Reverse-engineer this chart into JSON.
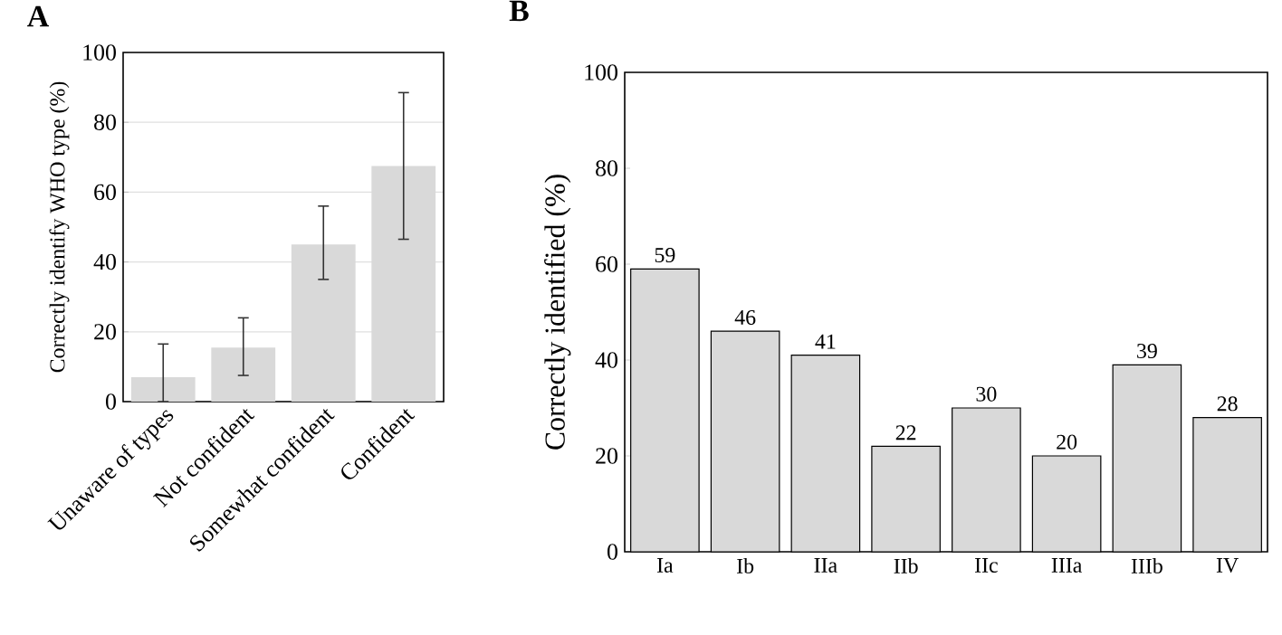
{
  "chart_data": [
    {
      "type": "bar",
      "title": "A",
      "ylabel": "Correctly identify WHO type (%)",
      "categories": [
        "Unaware of types",
        "Not confident",
        "Somewhat confident",
        "Confident"
      ],
      "values": [
        7,
        15.5,
        45,
        67.5
      ],
      "errors": [
        [
          0,
          16.5
        ],
        [
          7.5,
          24
        ],
        [
          35,
          56
        ],
        [
          46.5,
          88.5
        ]
      ],
      "color": "#d9d9d9",
      "ylim": [
        0,
        100
      ],
      "yticks": [
        0,
        20,
        40,
        60,
        80,
        100
      ],
      "grid": "y"
    },
    {
      "type": "bar",
      "title": "B",
      "ylabel": "Correctly identified (%)",
      "categories": [
        "Ia",
        "Ib",
        "IIa",
        "IIb",
        "IIc",
        "IIIa",
        "IIIb",
        "IV"
      ],
      "values": [
        59,
        46,
        41,
        22,
        30,
        20,
        39,
        28
      ],
      "color": "#d9d9d9",
      "ylim": [
        0,
        100
      ],
      "yticks": [
        0,
        20,
        40,
        60,
        80,
        100
      ],
      "grid": false,
      "data_labels": true
    }
  ]
}
